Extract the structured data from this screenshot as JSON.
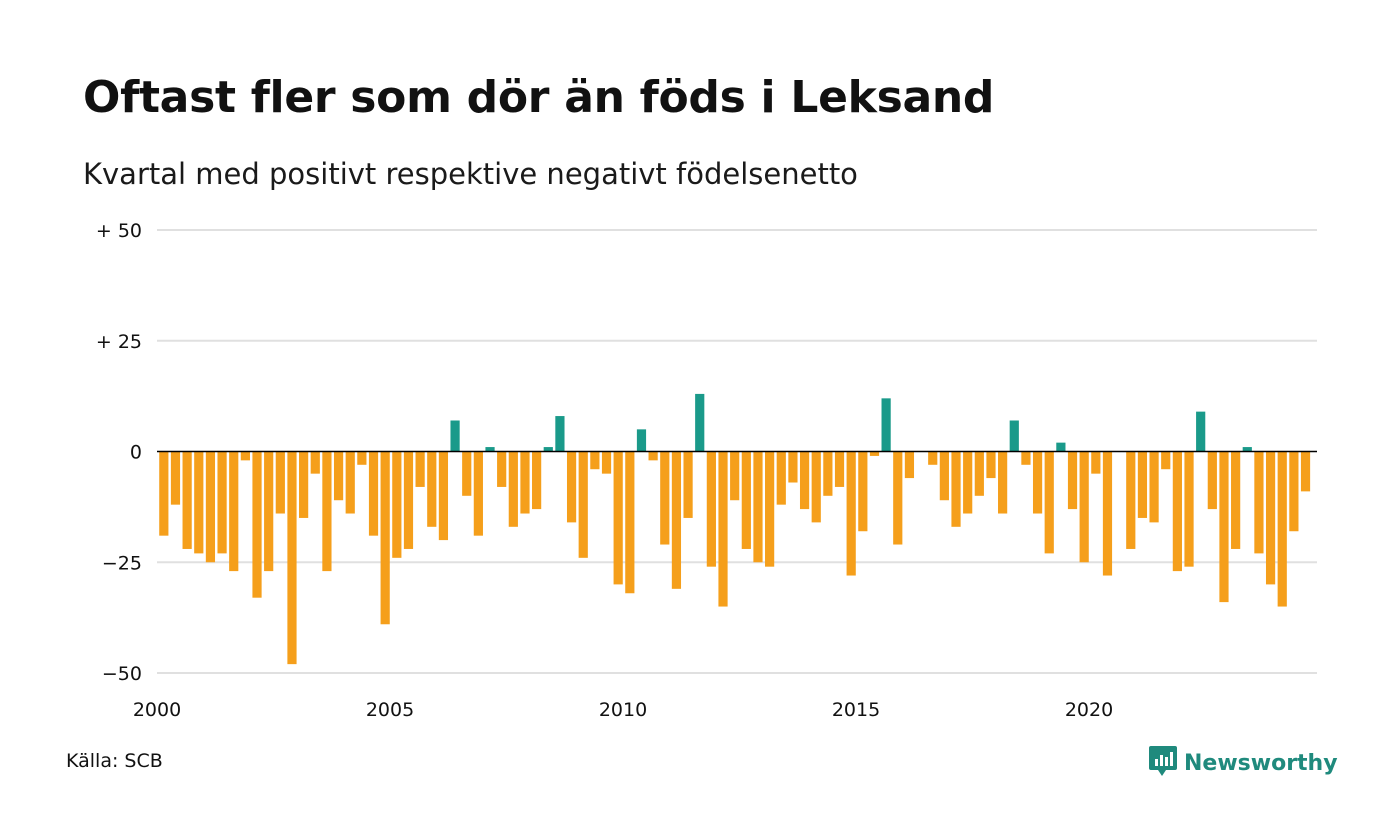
{
  "title": "Oftast fler som dör än föds i Leksand",
  "subtitle": "Kvartal med positivt respektive negativt födelsenetto",
  "source": "Källa: SCB",
  "brand": {
    "name": "Newsworthy",
    "icon": "newsworthy-logo-icon"
  },
  "colors": {
    "positive": "#1a9a8a",
    "negative": "#f59f1b",
    "grid": "#e0e0e0",
    "zero_line": "#000000"
  },
  "chart_data": {
    "type": "bar",
    "ylim": [
      -50,
      50
    ],
    "yticks": [
      {
        "value": 50,
        "label": "+ 50"
      },
      {
        "value": 25,
        "label": "+ 25"
      },
      {
        "value": 0,
        "label": "0"
      },
      {
        "value": -25,
        "label": "−25"
      },
      {
        "value": -50,
        "label": "−50"
      }
    ],
    "xticks": [
      {
        "value": 2000,
        "label": "2000"
      },
      {
        "value": 2005,
        "label": "2005"
      },
      {
        "value": 2010,
        "label": "2010"
      },
      {
        "value": 2015,
        "label": "2015"
      },
      {
        "value": 2020,
        "label": "2020"
      }
    ],
    "x_start": 2000,
    "quarters_per_year": 4,
    "values": [
      -19,
      -12,
      -22,
      -23,
      -25,
      -23,
      -27,
      -2,
      -33,
      -27,
      -14,
      -48,
      -15,
      -5,
      -27,
      -11,
      -14,
      -3,
      -19,
      -39,
      -24,
      -22,
      -8,
      -17,
      -20,
      7,
      -10,
      -19,
      1,
      -8,
      -17,
      -14,
      -13,
      1,
      8,
      -16,
      -24,
      -4,
      -5,
      -30,
      -32,
      5,
      -2,
      -21,
      -31,
      -15,
      13,
      -26,
      -35,
      -11,
      -22,
      -25,
      -26,
      -12,
      -7,
      -13,
      -16,
      -10,
      -8,
      -28,
      -18,
      -1,
      12,
      -21,
      -6,
      0,
      -3,
      -11,
      -17,
      -14,
      -10,
      -6,
      -14,
      7,
      -3,
      -14,
      -23,
      2,
      -13,
      -25,
      -5,
      -28,
      0,
      -22,
      -15,
      -16,
      -4,
      -27,
      -26,
      9,
      -13,
      -34,
      -22,
      1,
      -23,
      -30,
      -35,
      -18,
      -9
    ]
  }
}
